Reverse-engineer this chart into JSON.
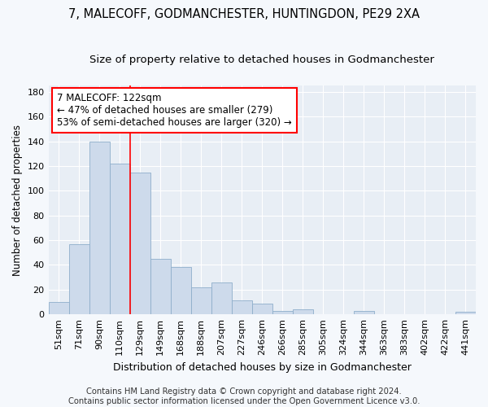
{
  "title": "7, MALECOFF, GODMANCHESTER, HUNTINGDON, PE29 2XA",
  "subtitle": "Size of property relative to detached houses in Godmanchester",
  "xlabel": "Distribution of detached houses by size in Godmanchester",
  "ylabel": "Number of detached properties",
  "categories": [
    "51sqm",
    "71sqm",
    "90sqm",
    "110sqm",
    "129sqm",
    "149sqm",
    "168sqm",
    "188sqm",
    "207sqm",
    "227sqm",
    "246sqm",
    "266sqm",
    "285sqm",
    "305sqm",
    "324sqm",
    "344sqm",
    "363sqm",
    "383sqm",
    "402sqm",
    "422sqm",
    "441sqm"
  ],
  "values": [
    10,
    57,
    140,
    122,
    115,
    45,
    38,
    22,
    26,
    11,
    9,
    3,
    4,
    0,
    0,
    3,
    0,
    0,
    0,
    0,
    2
  ],
  "bar_color": "#cddaeb",
  "bar_edge_color": "#8eaecb",
  "vline_x_index": 4,
  "vline_color": "red",
  "annotation_text": "7 MALECOFF: 122sqm\n← 47% of detached houses are smaller (279)\n53% of semi-detached houses are larger (320) →",
  "annotation_box_facecolor": "white",
  "annotation_box_edgecolor": "red",
  "ylim": [
    0,
    185
  ],
  "yticks": [
    0,
    20,
    40,
    60,
    80,
    100,
    120,
    140,
    160,
    180
  ],
  "fig_bg": "#f5f8fc",
  "plot_bg": "#e8eef5",
  "grid_color": "#ffffff",
  "title_fontsize": 10.5,
  "subtitle_fontsize": 9.5,
  "tick_fontsize": 8,
  "xlabel_fontsize": 9,
  "ylabel_fontsize": 8.5,
  "annotation_fontsize": 8.5,
  "footer_fontsize": 7.2,
  "footer": "Contains HM Land Registry data © Crown copyright and database right 2024.\nContains public sector information licensed under the Open Government Licence v3.0."
}
